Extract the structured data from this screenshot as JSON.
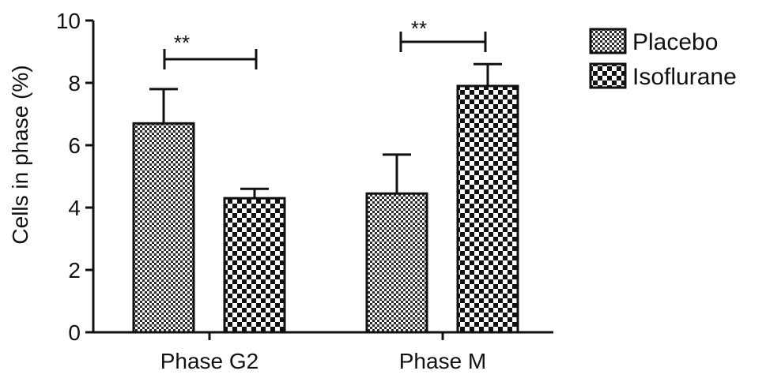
{
  "chart_data": {
    "type": "bar",
    "title": "",
    "xlabel": "",
    "ylabel": "Cells in phase (%)",
    "ylim": [
      0,
      10
    ],
    "yticks": [
      0,
      2,
      4,
      6,
      8,
      10
    ],
    "ytick_labels": [
      "0",
      "2",
      "4",
      "6",
      "8",
      "10"
    ],
    "categories": [
      "Phase G2",
      "Phase M"
    ],
    "series": [
      {
        "name": "Placebo",
        "values": [
          6.7,
          4.45
        ],
        "errors": [
          1.1,
          1.25
        ],
        "pattern": "fine-check"
      },
      {
        "name": "Isoflurane",
        "values": [
          4.3,
          7.9
        ],
        "errors": [
          0.3,
          0.7
        ],
        "pattern": "coarse-check"
      }
    ],
    "significance": [
      {
        "category": "Phase G2",
        "label": "**"
      },
      {
        "category": "Phase M",
        "label": "**"
      }
    ],
    "legend_position": "top-right",
    "grid": false,
    "colors": {
      "bar_fill": "#ffffff",
      "pattern": "#1a1a1a",
      "outline": "#111111"
    }
  }
}
